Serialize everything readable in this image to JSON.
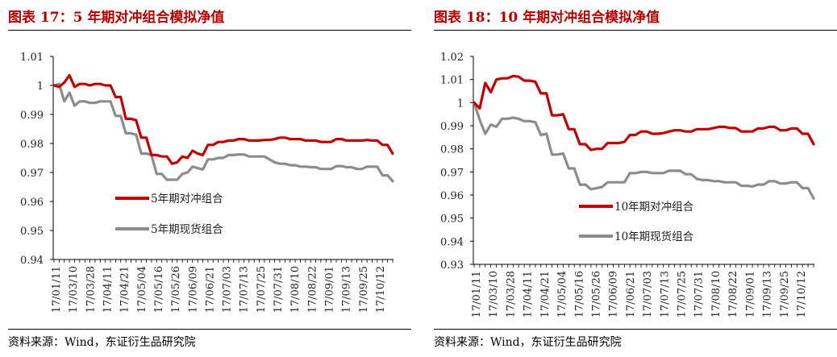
{
  "charts": [
    {
      "title": "图表 17：5 年期对冲组合模拟净值",
      "source": "资料来源：Wind，东证衍生品研究院",
      "chart_data": {
        "type": "line",
        "ylim": [
          0.94,
          1.01
        ],
        "yticks": [
          "1.01",
          "1",
          "0.99",
          "0.98",
          "0.97",
          "0.96",
          "0.95",
          "0.94"
        ],
        "xticks": [
          "17/01/11",
          "17/03/10",
          "17/03/28",
          "17/04/11",
          "17/04/21",
          "17/05/04",
          "17/05/16",
          "17/05/26",
          "17/06/09",
          "17/06/21",
          "17/07/03",
          "17/07/13",
          "17/07/25",
          "17/07/31",
          "17/08/10",
          "17/08/22",
          "17/09/01",
          "17/09/13",
          "17/09/25",
          "17/10/12"
        ],
        "legend_placement": "center-left",
        "series": [
          {
            "name": "5年期对冲组合",
            "color": "#c00000",
            "values": [
              1.0,
              0.9995,
              1.001,
              1.0035,
              0.9995,
              1.0005,
              1.0005,
              1.0,
              1.0005,
              1.0005,
              1.0,
              1.0,
              0.996,
              0.996,
              0.9885,
              0.9885,
              0.988,
              0.982,
              0.982,
              0.976,
              0.976,
              0.9755,
              0.9755,
              0.973,
              0.9735,
              0.9755,
              0.975,
              0.9775,
              0.9765,
              0.976,
              0.9795,
              0.9795,
              0.9805,
              0.9805,
              0.981,
              0.981,
              0.9815,
              0.9815,
              0.981,
              0.981,
              0.981,
              0.9812,
              0.9812,
              0.9815,
              0.982,
              0.982,
              0.9815,
              0.9815,
              0.9815,
              0.981,
              0.981,
              0.981,
              0.9805,
              0.9805,
              0.9805,
              0.9815,
              0.9815,
              0.981,
              0.981,
              0.981,
              0.981,
              0.9812,
              0.981,
              0.981,
              0.9795,
              0.9795,
              0.9765
            ]
          },
          {
            "name": "5年期现货组合",
            "color": "#8c8c8c",
            "values": [
              1.0,
              1.0005,
              0.9945,
              0.9975,
              0.993,
              0.9945,
              0.9945,
              0.994,
              0.994,
              0.9945,
              0.9945,
              0.9945,
              0.9895,
              0.9895,
              0.9835,
              0.9835,
              0.983,
              0.9765,
              0.9765,
              0.976,
              0.9695,
              0.9695,
              0.9675,
              0.9675,
              0.9675,
              0.9695,
              0.97,
              0.972,
              0.9715,
              0.971,
              0.9745,
              0.9745,
              0.975,
              0.975,
              0.976,
              0.976,
              0.9762,
              0.9762,
              0.9755,
              0.9755,
              0.9755,
              0.9755,
              0.9745,
              0.9735,
              0.973,
              0.973,
              0.9725,
              0.9725,
              0.972,
              0.972,
              0.9718,
              0.9718,
              0.9712,
              0.9712,
              0.9712,
              0.9722,
              0.9722,
              0.9718,
              0.9718,
              0.9712,
              0.9712,
              0.972,
              0.972,
              0.972,
              0.969,
              0.969,
              0.967
            ]
          }
        ]
      }
    },
    {
      "title": "图表 18：10 年期对冲组合模拟净值",
      "source": "资料来源：Wind，东证衍生品研究院",
      "chart_data": {
        "type": "line",
        "ylim": [
          0.93,
          1.02
        ],
        "yticks": [
          "1.02",
          "1.01",
          "1",
          "0.99",
          "0.98",
          "0.97",
          "0.96",
          "0.95",
          "0.94",
          "0.93"
        ],
        "xticks": [
          "17/01/11",
          "17/03/10",
          "17/03/28",
          "17/04/11",
          "17/04/21",
          "17/05/04",
          "17/05/16",
          "17/05/26",
          "17/06/09",
          "17/06/21",
          "17/07/03",
          "17/07/13",
          "17/07/25",
          "17/07/31",
          "17/08/10",
          "17/08/22",
          "17/09/01",
          "17/09/13",
          "17/09/25",
          "17/10/12"
        ],
        "legend_placement": "bottom-center",
        "series": [
          {
            "name": "10年期对冲组合",
            "color": "#c00000",
            "values": [
              1.0,
              0.9975,
              1.0085,
              1.0045,
              1.01,
              1.0105,
              1.0105,
              1.0115,
              1.0112,
              1.0095,
              1.0095,
              1.009,
              1.004,
              1.004,
              0.9945,
              0.9945,
              0.995,
              0.9885,
              0.9885,
              0.982,
              0.982,
              0.9795,
              0.98,
              0.98,
              0.9825,
              0.9825,
              0.9825,
              0.983,
              0.986,
              0.986,
              0.9875,
              0.9875,
              0.9865,
              0.9865,
              0.9868,
              0.9875,
              0.988,
              0.988,
              0.9875,
              0.9875,
              0.9885,
              0.9885,
              0.9885,
              0.989,
              0.9895,
              0.9895,
              0.989,
              0.989,
              0.9875,
              0.9875,
              0.9875,
              0.9888,
              0.9888,
              0.9895,
              0.9895,
              0.988,
              0.988,
              0.9888,
              0.9888,
              0.9865,
              0.9865,
              0.982
            ]
          },
          {
            "name": "10年期现货组合",
            "color": "#8c8c8c",
            "values": [
              1.0,
              0.9925,
              0.9865,
              0.9905,
              0.9895,
              0.993,
              0.993,
              0.9935,
              0.993,
              0.992,
              0.992,
              0.9915,
              0.986,
              0.9865,
              0.9775,
              0.9775,
              0.978,
              0.9715,
              0.9715,
              0.9645,
              0.9645,
              0.9625,
              0.963,
              0.9635,
              0.9655,
              0.9655,
              0.9655,
              0.9655,
              0.9695,
              0.9695,
              0.97,
              0.97,
              0.9695,
              0.9695,
              0.9695,
              0.9705,
              0.9705,
              0.9705,
              0.969,
              0.969,
              0.967,
              0.9665,
              0.9665,
              0.966,
              0.966,
              0.9655,
              0.9655,
              0.9655,
              0.964,
              0.964,
              0.9637,
              0.9645,
              0.9645,
              0.966,
              0.966,
              0.965,
              0.965,
              0.9655,
              0.9655,
              0.963,
              0.963,
              0.9585
            ]
          }
        ]
      }
    }
  ]
}
